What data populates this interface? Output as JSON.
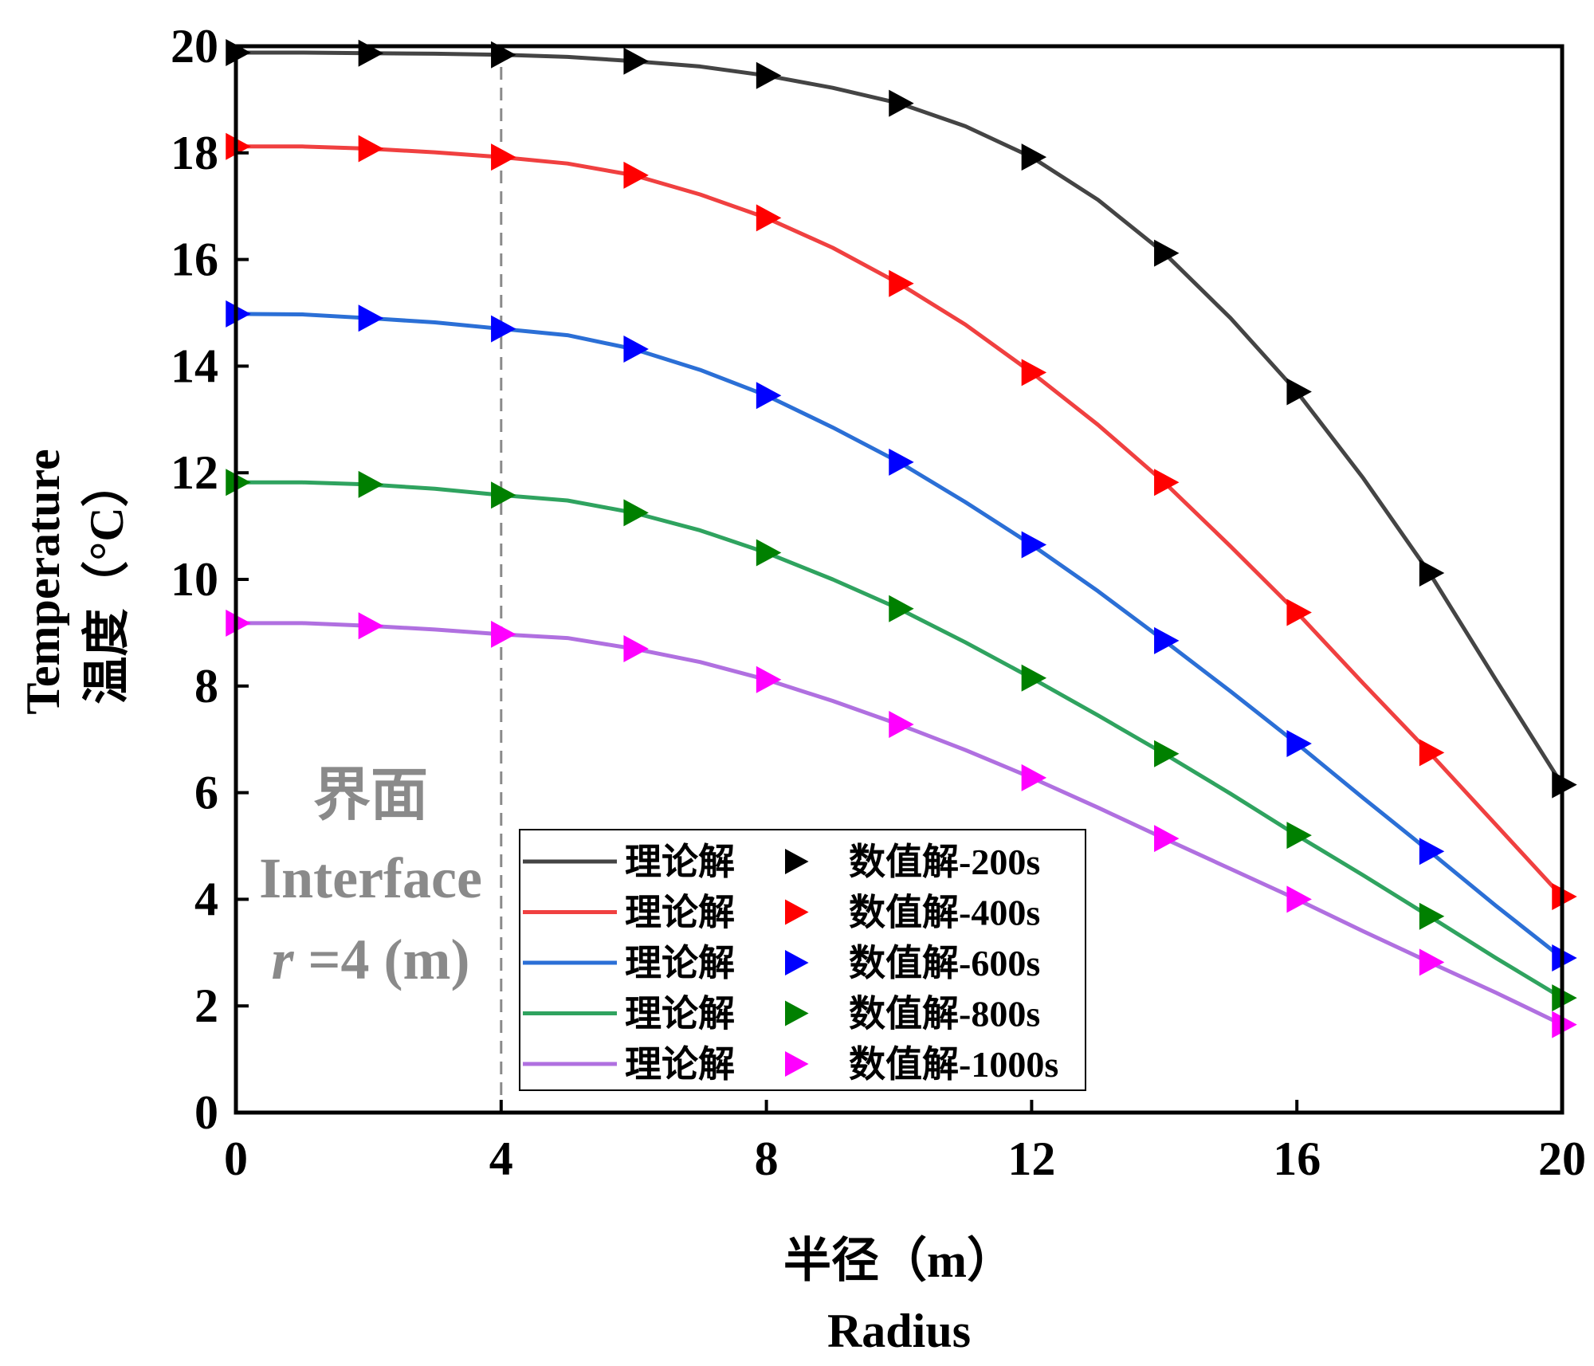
{
  "chart_data": {
    "type": "line",
    "xlabel": "半径（m）",
    "xlabel_en": "Radius",
    "ylabel": "温度（°C）",
    "ylabel_en": "Temperature",
    "xlim": [
      0,
      20
    ],
    "ylim": [
      0,
      20
    ],
    "x_ticks": [
      "0",
      "4",
      "8",
      "12",
      "16",
      "20"
    ],
    "y_ticks": [
      "0",
      "2",
      "4",
      "6",
      "8",
      "10",
      "12",
      "14",
      "16",
      "18",
      "20"
    ],
    "grid": false,
    "legend_placement": "bottom-center",
    "interface": {
      "x": 4,
      "line1": "界面",
      "line2": "Interface",
      "line3_var": "r",
      "line3_rest": " =4 (m)",
      "color": "#8a8a8a"
    },
    "x": [
      0,
      1,
      2,
      3,
      4,
      5,
      6,
      7,
      8,
      9,
      10,
      11,
      12,
      13,
      14,
      15,
      16,
      17,
      18,
      19,
      20
    ],
    "marker_x": [
      0,
      2,
      4,
      6,
      8,
      10,
      12,
      14,
      16,
      18,
      20
    ],
    "series": [
      {
        "name": "理论解",
        "marker_name": "数值解-200s",
        "line_color": "#444444",
        "marker_color": "#000000",
        "values": [
          19.88,
          19.88,
          19.87,
          19.86,
          19.84,
          19.8,
          19.72,
          19.62,
          19.45,
          19.22,
          18.93,
          18.5,
          17.92,
          17.12,
          16.12,
          14.9,
          13.52,
          11.9,
          10.12,
          8.12,
          6.15
        ],
        "marker_values": [
          19.88,
          19.87,
          19.84,
          19.72,
          19.45,
          18.93,
          17.92,
          16.12,
          13.52,
          10.12,
          6.15
        ]
      },
      {
        "name": "理论解",
        "marker_name": "数值解-400s",
        "line_color": "#f04040",
        "marker_color": "#ff0000",
        "values": [
          18.12,
          18.12,
          18.08,
          18.01,
          17.92,
          17.8,
          17.58,
          17.22,
          16.78,
          16.22,
          15.55,
          14.78,
          13.88,
          12.9,
          11.82,
          10.62,
          9.38,
          8.05,
          6.75,
          5.4,
          4.05
        ],
        "marker_values": [
          18.12,
          18.08,
          17.92,
          17.58,
          16.78,
          15.55,
          13.88,
          11.82,
          9.38,
          6.75,
          4.05
        ]
      },
      {
        "name": "理论解",
        "marker_name": "数值解-600s",
        "line_color": "#2b6fd6",
        "marker_color": "#0000ff",
        "values": [
          14.98,
          14.97,
          14.9,
          14.82,
          14.7,
          14.58,
          14.32,
          13.93,
          13.45,
          12.85,
          12.2,
          11.45,
          10.65,
          9.78,
          8.85,
          7.9,
          6.92,
          5.9,
          4.9,
          3.88,
          2.9
        ],
        "marker_values": [
          14.98,
          14.9,
          14.7,
          14.32,
          13.45,
          12.2,
          10.65,
          8.85,
          6.92,
          4.9,
          2.9
        ]
      },
      {
        "name": "理论解",
        "marker_name": "数值解-800s",
        "line_color": "#2fa35f",
        "marker_color": "#008000",
        "values": [
          11.82,
          11.82,
          11.78,
          11.7,
          11.58,
          11.48,
          11.25,
          10.92,
          10.5,
          10.0,
          9.45,
          8.82,
          8.15,
          7.45,
          6.73,
          5.98,
          5.2,
          4.45,
          3.68,
          2.9,
          2.15
        ],
        "marker_values": [
          11.82,
          11.78,
          11.58,
          11.25,
          10.5,
          9.45,
          8.15,
          6.73,
          5.2,
          3.68,
          2.15
        ]
      },
      {
        "name": "理论解",
        "marker_name": "数值解-1000s",
        "line_color": "#b070e0",
        "marker_color": "#ff00ff",
        "values": [
          9.18,
          9.18,
          9.13,
          9.06,
          8.97,
          8.9,
          8.7,
          8.45,
          8.12,
          7.72,
          7.28,
          6.8,
          6.28,
          5.72,
          5.14,
          4.57,
          4.0,
          3.4,
          2.82,
          2.25,
          1.65
        ],
        "marker_values": [
          9.18,
          9.13,
          8.97,
          8.7,
          8.12,
          7.28,
          6.28,
          5.14,
          4.0,
          2.82,
          1.65
        ]
      }
    ]
  }
}
